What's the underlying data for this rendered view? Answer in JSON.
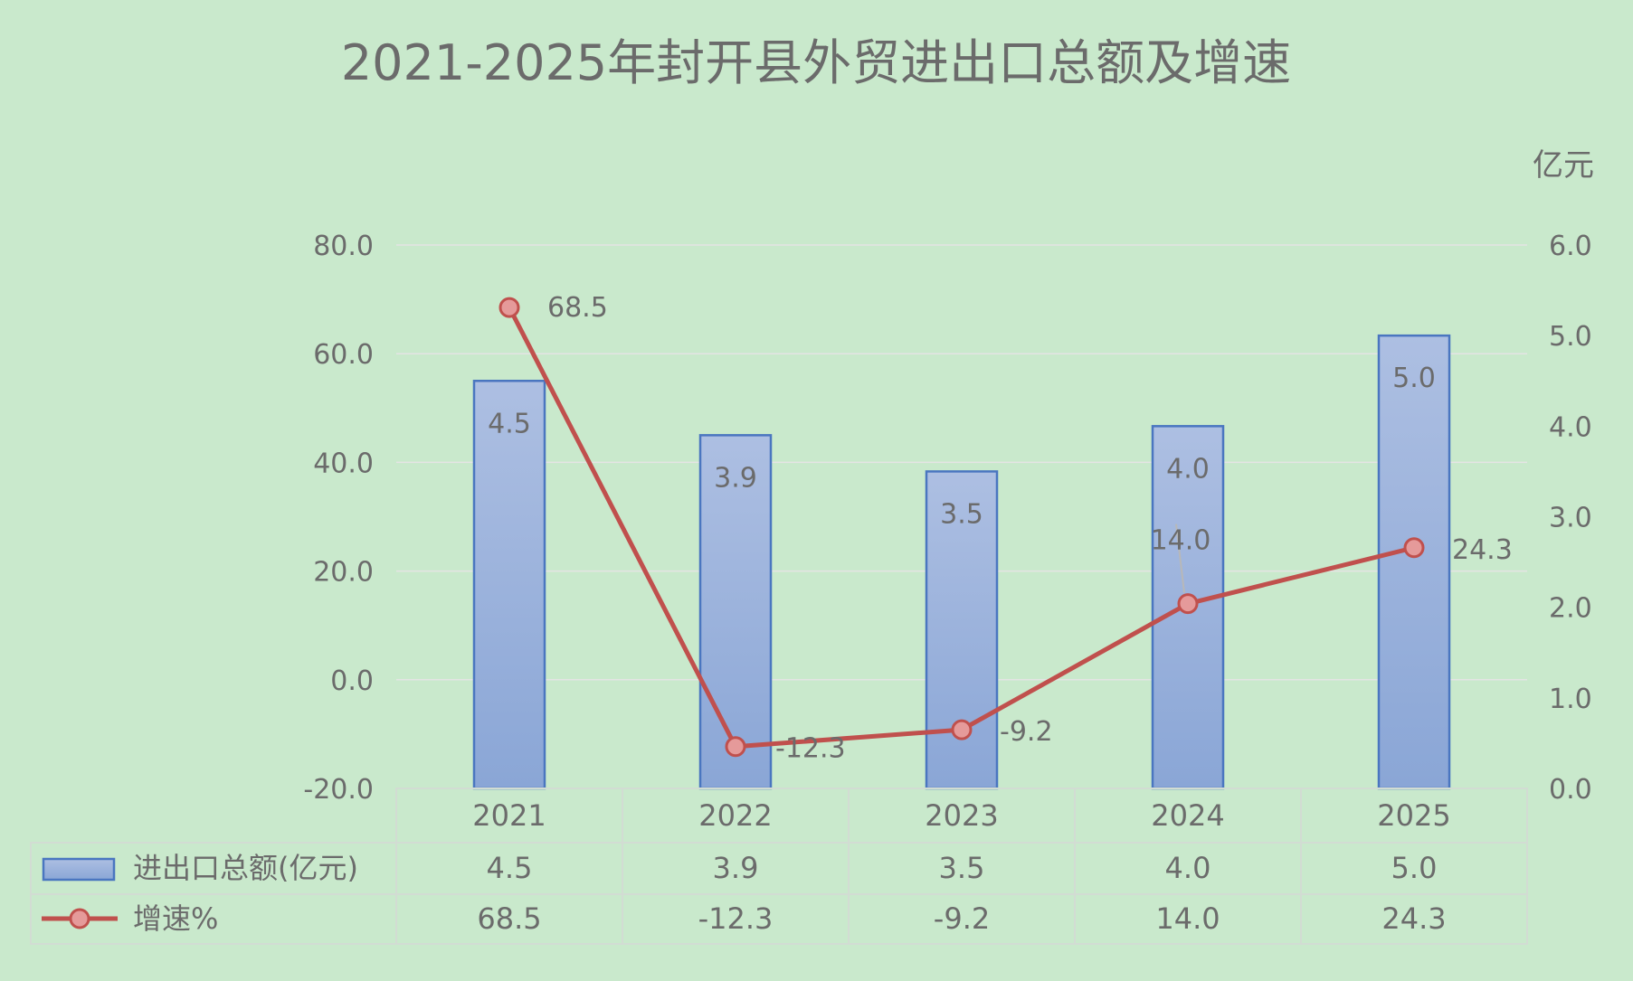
{
  "chart_data": {
    "type": "bar+line",
    "title": "2021-2025年封开县外贸进出口总额及增速",
    "right_axis_unit": "亿元",
    "categories": [
      "2021",
      "2022",
      "2023",
      "2024",
      "2025"
    ],
    "series": [
      {
        "name": "进出口总额(亿元)",
        "type": "bar",
        "axis": "right",
        "values": [
          4.5,
          3.9,
          3.5,
          4.0,
          5.0
        ],
        "labels": [
          "4.5",
          "3.9",
          "3.5",
          "4.0",
          "5.0"
        ],
        "color": "#95acd8",
        "border_color": "#4a76c0"
      },
      {
        "name": "增速%",
        "type": "line",
        "axis": "left",
        "values": [
          68.5,
          -12.3,
          -9.2,
          14.0,
          24.3
        ],
        "labels": [
          "68.5",
          "-12.3",
          "-9.2",
          "14.0",
          "24.3"
        ],
        "color": "#c0504d",
        "marker_color": "#e59a9a"
      }
    ],
    "left_axis": {
      "min": -20,
      "max": 80,
      "ticks": [
        "80.0",
        "60.0",
        "40.0",
        "20.0",
        "0.0",
        "-20.0"
      ]
    },
    "right_axis": {
      "min": 0,
      "max": 6,
      "ticks": [
        "6.0",
        "5.0",
        "4.0",
        "3.0",
        "2.0",
        "1.0",
        "0.0"
      ]
    },
    "grid": true,
    "legend": "data-table-bottom"
  }
}
